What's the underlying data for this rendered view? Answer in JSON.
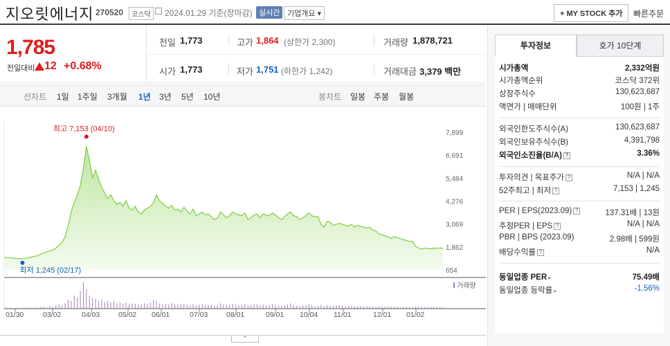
{
  "header": {
    "name": "지오릿에너지",
    "code": "270520",
    "market": "코스닥",
    "date": "2024.01.29 기준(장마감)",
    "live": "실시간",
    "company": "기업개요 ▾",
    "my_stock": "+ MY STOCK 추가",
    "quick": "빠른주문"
  },
  "price": {
    "current": "1,785",
    "change_label": "전일대비",
    "change": "12",
    "pct": "+0.68%"
  },
  "stats": {
    "prev_label": "전일",
    "prev": "1,773",
    "high_label": "고가",
    "high": "1,864",
    "upper": "(상한가 2,300)",
    "vol_label": "거래량",
    "vol": "1,878,721",
    "open_label": "시가",
    "open": "1,773",
    "low_label": "저가",
    "low": "1,751",
    "lower": "(하한가 1,242)",
    "amt_label": "거래대금",
    "amt": "3,379 백만"
  },
  "range_tabs": {
    "line_label": "선차트",
    "ranges": [
      "1일",
      "1주일",
      "3개월",
      "1년",
      "3년",
      "5년",
      "10년"
    ],
    "active": "1년",
    "candle_label": "봉차트",
    "candles": [
      "일봉",
      "주봉",
      "월봉"
    ]
  },
  "chart_data": {
    "type": "area",
    "y_ticks": [
      "7,899",
      "6,691",
      "5,484",
      "4,276",
      "3,069",
      "1,862",
      "654"
    ],
    "ylim": [
      654,
      7899
    ],
    "x_ticks": [
      "01/30",
      "03/02",
      "04/03",
      "05/02",
      "06/01",
      "07/03",
      "08/01",
      "09/01",
      "10/04",
      "11/01",
      "12/01",
      "01/02"
    ],
    "max_label": "최고 7,153 (04/10)",
    "min_label": "최저 1,245 (02/17)",
    "volume_label": "거래량",
    "series": [
      {
        "values": [
          1320,
          1300,
          1285,
          1270,
          1260,
          1250,
          1245,
          1265,
          1300,
          1330,
          1370,
          1400,
          1480,
          1540,
          1600,
          1650,
          1700,
          1800,
          1950,
          2100,
          2400,
          3000,
          3700,
          4200,
          4600,
          5100,
          6000,
          7153,
          6400,
          5500,
          5900,
          5400,
          5000,
          4700,
          4400,
          4600,
          4300,
          4100,
          4200,
          4000,
          4300,
          3900,
          3800,
          4000,
          3700,
          3600,
          3800,
          3900,
          4000,
          4200,
          4600,
          4300,
          4150,
          4000,
          3900,
          4050,
          3800,
          3850,
          3700,
          3950,
          3750,
          3600,
          3850,
          3500,
          3600,
          3700,
          3550,
          3600,
          3450,
          3300,
          3400,
          3700,
          3550,
          3400,
          3500,
          3700,
          3600,
          3550,
          3500,
          3650,
          3300,
          3400,
          3550,
          3600,
          3400,
          3600,
          3550,
          3500,
          3650,
          3550,
          3400,
          3300,
          3450,
          3600,
          3700,
          3500,
          3450,
          3300,
          3400,
          3500,
          3650,
          3500,
          3450,
          3450,
          3050,
          2900,
          3200,
          3150,
          3000,
          3050,
          3100,
          3050,
          3000,
          2950,
          3050,
          2900,
          3000,
          2950,
          2900,
          2850,
          2900,
          2750,
          2700,
          2550,
          2500,
          2450,
          2400,
          2300,
          2400,
          2350,
          2300,
          2250,
          2200,
          2150,
          2150,
          1900,
          1800,
          1750,
          1800,
          1780,
          1760,
          1800,
          1790,
          1810,
          1785
        ]
      }
    ],
    "volume": [
      3,
      2,
      2,
      1,
      2,
      1,
      2,
      3,
      2,
      2,
      3,
      2,
      4,
      5,
      3,
      6,
      4,
      8,
      10,
      8,
      12,
      20,
      18,
      30,
      25,
      40,
      60,
      45,
      30,
      25,
      22,
      18,
      20,
      15,
      18,
      14,
      16,
      12,
      14,
      12,
      15,
      10,
      12,
      11,
      9,
      10,
      12,
      11,
      14,
      20,
      18,
      12,
      10,
      11,
      9,
      12,
      10,
      9,
      10,
      11,
      9,
      8,
      10,
      7,
      9,
      10,
      8,
      8,
      9,
      7,
      8,
      12,
      10,
      8,
      9,
      11,
      9,
      8,
      8,
      10,
      7,
      8,
      9,
      10,
      8,
      9,
      8,
      8,
      10,
      9,
      7,
      6,
      8,
      9,
      12,
      8,
      7,
      6,
      7,
      8,
      9,
      7,
      6,
      7,
      9,
      6,
      8,
      7,
      6,
      7,
      8,
      7,
      6,
      6,
      7,
      5,
      6,
      6,
      5,
      5,
      6,
      5,
      4,
      5,
      5,
      4,
      4,
      5,
      5,
      4,
      4,
      4,
      4,
      4,
      4,
      5,
      4,
      4,
      4,
      4,
      4,
      4,
      4,
      4,
      4
    ],
    "max_index": 27,
    "min_index": 6
  },
  "invest": {
    "tab1": "투자정보",
    "tab2": "호가 10단계",
    "rows": [
      {
        "k": "시가총액",
        "v": "2,332억원",
        "bold": true
      },
      {
        "k": "시가총액순위",
        "v": "코스닥 372위"
      },
      {
        "k": "상장주식수",
        "v": "130,623,687"
      },
      {
        "k": "액면가 | 매매단위",
        "v": "100원 | 1주"
      },
      {
        "k": "외국인한도주식수(A)",
        "v": "130,623,687"
      },
      {
        "k": "외국인보유주식수(B)",
        "v": "4,391,798"
      },
      {
        "k": "외국인소진율(B/A)",
        "v": "3.36%",
        "bold": true
      },
      {
        "k": "투자의견 | 목표주가",
        "v": "N/A | N/A"
      },
      {
        "k": "52주최고 | 최저",
        "v": "7,153 | 1,245"
      },
      {
        "k": "PER | EPS(2023.09)",
        "v": "137.31배 | 13원"
      },
      {
        "k": "추정PER | EPS",
        "v": "N/A | N/A"
      },
      {
        "k": "PBR | BPS (2023.09)",
        "v": "2.98배 | 599원"
      },
      {
        "k": "배당수익률",
        "v": "N/A"
      },
      {
        "k": "동일업종 PER",
        "v": "75.49배",
        "bold": true
      },
      {
        "k": "동일업종 등락률",
        "v": "-1.56%",
        "blue": true
      }
    ]
  }
}
